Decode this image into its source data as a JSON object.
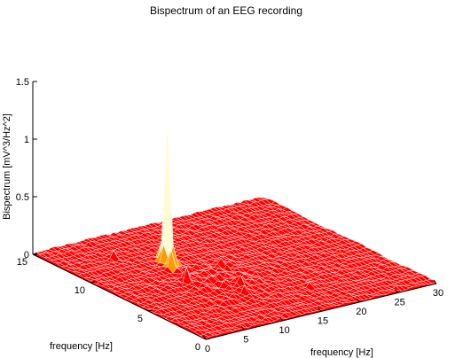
{
  "chart_data": {
    "type": "surface",
    "title": "Bispectrum of an EEG recording",
    "xlabel": "frequency [Hz]",
    "ylabel": "frequency [Hz]",
    "zlabel": "Bispectrum [mV^3/Hz^2]",
    "x_range": [
      0,
      30
    ],
    "y_range": [
      0,
      15
    ],
    "z_range": [
      0,
      1.5
    ],
    "x_ticks": [
      "0",
      "5",
      "10",
      "15",
      "20",
      "25",
      "30"
    ],
    "y_ticks": [
      "0",
      "5",
      "10",
      "15"
    ],
    "z_ticks": [
      "0",
      "0.5",
      "1",
      "1.5"
    ],
    "grid": false,
    "colormap": "hot",
    "surface_color": "#ff0000",
    "edge_color": "#ffffff",
    "peaks": [
      {
        "x": 10,
        "y": 10,
        "z": 1.25
      },
      {
        "x": 9,
        "y": 9,
        "z": 0.18
      },
      {
        "x": 8,
        "y": 7,
        "z": 0.1
      },
      {
        "x": 12,
        "y": 5,
        "z": 0.09
      },
      {
        "x": 11,
        "y": 4,
        "z": 0.08
      },
      {
        "x": 18,
        "y": 3,
        "z": 0.05
      },
      {
        "x": 6,
        "y": 12,
        "z": 0.06
      },
      {
        "x": 14,
        "y": 8,
        "z": 0.05
      }
    ],
    "baseline": 0.02
  }
}
